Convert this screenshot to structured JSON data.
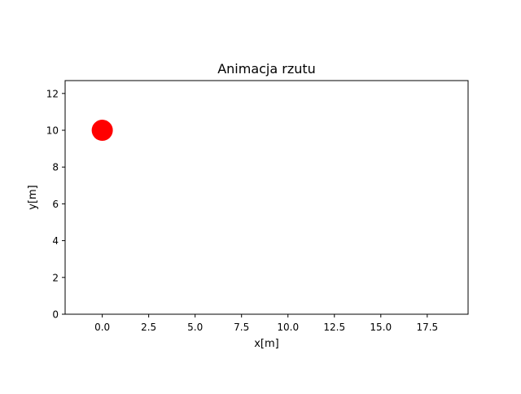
{
  "chart_data": {
    "type": "scatter",
    "title": "Animacja rzutu",
    "xlabel": "x[m]",
    "ylabel": "y[m]",
    "xlim": [
      -2.0,
      19.7
    ],
    "ylim": [
      0,
      12.7
    ],
    "xticks": [
      0.0,
      2.5,
      5.0,
      7.5,
      10.0,
      12.5,
      15.0,
      17.5
    ],
    "xtick_labels": [
      "0.0",
      "2.5",
      "5.0",
      "7.5",
      "10.0",
      "12.5",
      "15.0",
      "17.5"
    ],
    "yticks": [
      0,
      2,
      4,
      6,
      8,
      10,
      12
    ],
    "ytick_labels": [
      "0",
      "2",
      "4",
      "6",
      "8",
      "10",
      "12"
    ],
    "grid": false,
    "series": [
      {
        "points": [
          {
            "x": 0.0,
            "y": 10.0
          }
        ],
        "color": "#ff0000",
        "marker": "circle"
      }
    ]
  }
}
